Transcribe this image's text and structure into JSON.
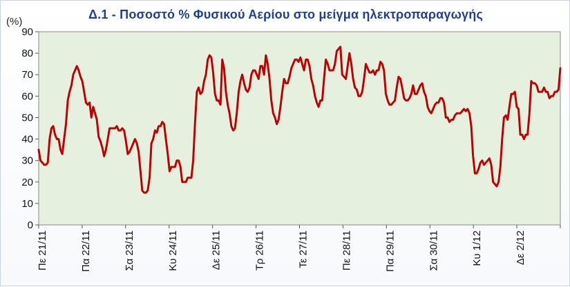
{
  "chart_data": {
    "type": "line",
    "title": "Δ.1 - Ποσοστό % Φυσικού Αερίου στο μείγμα ηλεκτροπαραγωγής",
    "ylabel": "(%)",
    "xlabel": "",
    "ylim": [
      0,
      90
    ],
    "y_ticks": [
      0,
      10,
      20,
      30,
      40,
      50,
      60,
      70,
      80,
      90
    ],
    "x_tick_labels": [
      "Πε 21/11",
      "Πα 22/11",
      "Σα 23/11",
      "Κυ 24/11",
      "Δε 25/11",
      "Τρ 26/11",
      "Τε 27/11",
      "Πε 28/11",
      "Πα 29/11",
      "Σα 30/11",
      "Κυ 1/12",
      "Δε 2/12"
    ],
    "grid": false,
    "legend": "none",
    "colors": {
      "line": "#c00000",
      "plot_bg": "#e6f0de",
      "title": "#1f3f8f"
    },
    "series": [
      {
        "values": [
          35,
          30,
          29,
          28,
          28,
          29,
          40,
          45,
          46,
          42,
          40,
          40,
          35,
          33,
          40,
          47,
          58,
          62,
          65,
          70,
          72,
          74,
          72,
          69,
          67,
          62,
          57,
          56,
          57,
          50,
          55,
          52,
          49,
          41,
          39,
          36,
          32,
          35,
          40,
          45,
          45,
          45,
          45,
          46,
          44,
          44,
          45,
          44,
          39,
          33,
          34,
          36,
          38,
          40,
          38,
          34,
          25,
          16,
          15,
          15,
          16,
          22,
          38,
          40,
          44,
          43,
          46,
          46,
          48,
          47,
          40,
          33,
          25,
          27,
          27,
          27,
          30,
          30,
          27,
          20,
          20,
          20,
          22,
          22,
          22,
          30,
          47,
          62,
          64,
          61,
          62,
          67,
          70,
          77,
          79,
          78,
          71,
          61,
          58,
          58,
          56,
          77,
          73,
          62,
          56,
          52,
          46,
          44,
          45,
          52,
          62,
          67,
          70,
          66,
          63,
          62,
          64,
          70,
          72,
          72,
          70,
          68,
          74,
          74,
          70,
          79,
          75,
          68,
          58,
          52,
          50,
          47,
          49,
          55,
          62,
          68,
          66,
          66,
          69,
          73,
          75,
          77,
          77,
          76,
          78,
          75,
          72,
          77,
          77,
          74,
          68,
          65,
          60,
          57,
          55,
          58,
          58,
          68,
          77,
          75,
          72,
          72,
          72,
          75,
          81,
          82,
          83,
          70,
          69,
          68,
          74,
          80,
          75,
          68,
          64,
          63,
          60,
          60,
          62,
          68,
          75,
          73,
          71,
          71,
          72,
          70,
          72,
          72,
          76,
          75,
          72,
          61,
          58,
          56,
          56,
          57,
          58,
          64,
          69,
          68,
          64,
          59,
          58,
          58,
          59,
          61,
          65,
          61,
          61,
          63,
          65,
          66,
          62,
          60,
          55,
          53,
          52,
          54,
          56,
          57,
          57,
          59,
          59,
          57,
          50,
          50,
          48,
          49,
          49,
          51,
          52,
          52,
          52,
          53,
          54,
          53,
          54,
          52,
          46,
          32,
          24,
          24,
          26,
          29,
          30,
          28,
          29,
          30,
          31,
          28,
          20,
          19,
          18,
          20,
          27,
          40,
          50,
          51,
          49,
          55,
          61,
          61,
          62,
          55,
          54,
          42,
          42,
          40,
          42,
          42,
          52,
          67,
          66,
          66,
          65,
          62,
          62,
          62,
          64,
          62,
          62,
          59,
          60,
          60,
          62,
          62,
          63,
          73
        ]
      }
    ]
  }
}
